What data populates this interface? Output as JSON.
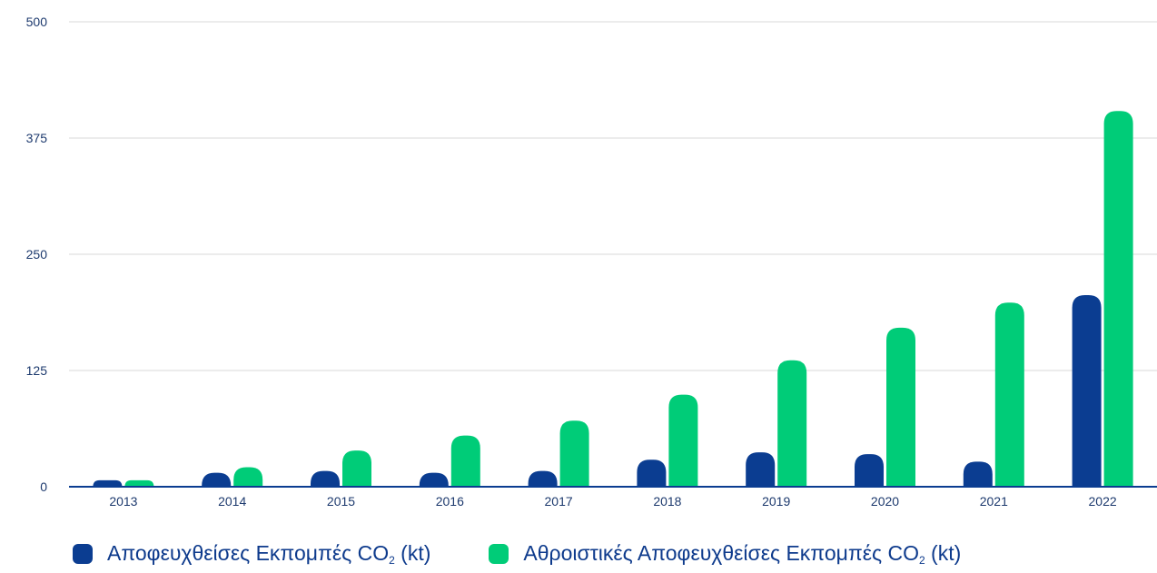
{
  "chart_data": {
    "type": "bar",
    "categories": [
      "2013",
      "2014",
      "2015",
      "2016",
      "2017",
      "2018",
      "2019",
      "2020",
      "2021",
      "2022"
    ],
    "series": [
      {
        "name": "Αποφευχθείσες Εκπομπές CO₂ (kt)",
        "name_main": "Αποφευχθείσες Εκπομπές CO",
        "name_sub": "2",
        "name_tail": " (kt)",
        "color": "#0b3d91",
        "values": [
          7,
          15,
          17,
          15,
          17,
          29,
          37,
          35,
          27,
          206
        ]
      },
      {
        "name": "Αθροιστικές Αποφευχθείσες Εκπομπές CO₂ (kt)",
        "name_main": "Αθροιστικές Αποφευχθείσες Εκπομπές CO",
        "name_sub": "2",
        "name_tail": " (kt)",
        "color": "#00cc78",
        "values": [
          7,
          21,
          39,
          55,
          71,
          99,
          136,
          171,
          198,
          404
        ]
      }
    ],
    "yticks": [
      "0",
      "125",
      "250",
      "375",
      "500"
    ],
    "ylim": [
      0,
      500
    ],
    "title": "",
    "xlabel": "",
    "ylabel": "",
    "grid": true,
    "legend_position": "bottom"
  }
}
